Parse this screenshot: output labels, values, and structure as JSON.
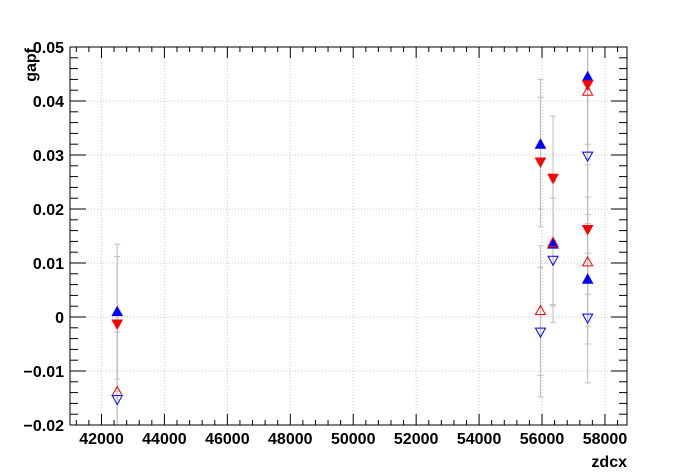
{
  "chart_data": {
    "type": "scatter",
    "xlabel": "zdcx",
    "ylabel": "gapf",
    "xlim": [
      41000,
      58700
    ],
    "ylim": [
      -0.02,
      0.05
    ],
    "x_ticks": [
      42000,
      44000,
      46000,
      48000,
      50000,
      52000,
      54000,
      56000,
      58000
    ],
    "x_tick_labels": [
      "42000",
      "44000",
      "46000",
      "48000",
      "50000",
      "52000",
      "54000",
      "56000",
      "58000"
    ],
    "y_ticks": [
      -0.02,
      -0.01,
      0,
      0.01,
      0.02,
      0.03,
      0.04,
      0.05
    ],
    "y_tick_labels": [
      "−0.02",
      "−0.01",
      "0",
      "0.01",
      "0.02",
      "0.03",
      "0.04",
      "0.05"
    ],
    "grid": true,
    "series": [
      {
        "marker": "triangle-up-filled",
        "color": "#0000ff",
        "points": [
          {
            "x": 42500,
            "y": 0.001,
            "err": 0.0125
          },
          {
            "x": 55950,
            "y": 0.032,
            "err": 0.012
          },
          {
            "x": 56350,
            "y": 0.0135,
            "err": 0.0115
          },
          {
            "x": 57450,
            "y": 0.0445,
            "err": 0.0125
          },
          {
            "x": 57450,
            "y": 0.007,
            "err": 0.012
          }
        ]
      },
      {
        "marker": "triangle-down-filled",
        "color": "#ff0000",
        "points": [
          {
            "x": 42500,
            "y": -0.0013,
            "err": 0.0125
          },
          {
            "x": 55950,
            "y": 0.0287,
            "err": 0.012
          },
          {
            "x": 56350,
            "y": 0.0257,
            "err": 0.0115
          },
          {
            "x": 57450,
            "y": 0.043,
            "err": 0.0125
          },
          {
            "x": 57450,
            "y": 0.0162,
            "err": 0.012
          }
        ]
      },
      {
        "marker": "triangle-up-open",
        "color": "#ff0000",
        "points": [
          {
            "x": 42500,
            "y": -0.0138,
            "err": 0.0125
          },
          {
            "x": 55950,
            "y": 0.0012,
            "err": 0.012
          },
          {
            "x": 56350,
            "y": 0.0138,
            "err": 0.0115
          },
          {
            "x": 57450,
            "y": 0.0418,
            "err": 0.0125
          },
          {
            "x": 57450,
            "y": 0.0102,
            "err": 0.012
          }
        ]
      },
      {
        "marker": "triangle-down-open",
        "color": "#0000ff",
        "points": [
          {
            "x": 42500,
            "y": -0.0153,
            "err": 0.0125
          },
          {
            "x": 55950,
            "y": -0.0028,
            "err": 0.012
          },
          {
            "x": 56350,
            "y": 0.0105,
            "err": 0.0115
          },
          {
            "x": 57450,
            "y": 0.0298,
            "err": 0.0125
          },
          {
            "x": 57450,
            "y": -0.0002,
            "err": 0.012
          }
        ]
      }
    ]
  }
}
